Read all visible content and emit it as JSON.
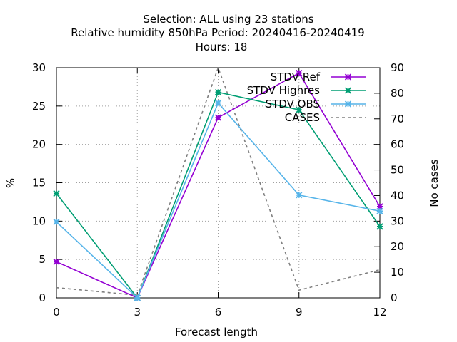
{
  "chart_data": {
    "type": "line",
    "title_lines": [
      "Selection: ALL using    23 stations",
      "Relative humidity 850hPa    Period: 20240416-20240419",
      "Hours:  18"
    ],
    "xlabel": "Forecast length",
    "ylabel": "%",
    "y2label": "No cases",
    "x": [
      0,
      3,
      6,
      9,
      12
    ],
    "xlim": [
      0,
      12
    ],
    "ylim": [
      0,
      30
    ],
    "y2lim": [
      0,
      90
    ],
    "xticks": [
      "0",
      "3",
      "6",
      "9",
      "12"
    ],
    "yticks": [
      "0",
      "5",
      "10",
      "15",
      "20",
      "25",
      "30"
    ],
    "y2ticks": [
      "0",
      "10",
      "20",
      "30",
      "40",
      "50",
      "60",
      "70",
      "80",
      "90"
    ],
    "grid": true,
    "legend_position": "top-right",
    "series": [
      {
        "name": "STDV Ref",
        "color": "#9400d3",
        "axis": "y",
        "marker": "x-star",
        "dash": false,
        "values": [
          4.7,
          0.0,
          23.5,
          29.3,
          11.9
        ]
      },
      {
        "name": "STDV Highres",
        "color": "#009e73",
        "axis": "y",
        "marker": "x-star",
        "dash": false,
        "values": [
          13.6,
          0.0,
          26.8,
          24.5,
          9.3
        ]
      },
      {
        "name": "STDV OBS",
        "color": "#56b4e9",
        "axis": "y",
        "marker": "x-star",
        "dash": false,
        "values": [
          9.9,
          0.0,
          25.4,
          13.4,
          11.3
        ]
      },
      {
        "name": "CASES",
        "color": "#808080",
        "axis": "y2",
        "marker": "none",
        "dash": true,
        "values": [
          4,
          1,
          90,
          3,
          11
        ]
      }
    ]
  }
}
